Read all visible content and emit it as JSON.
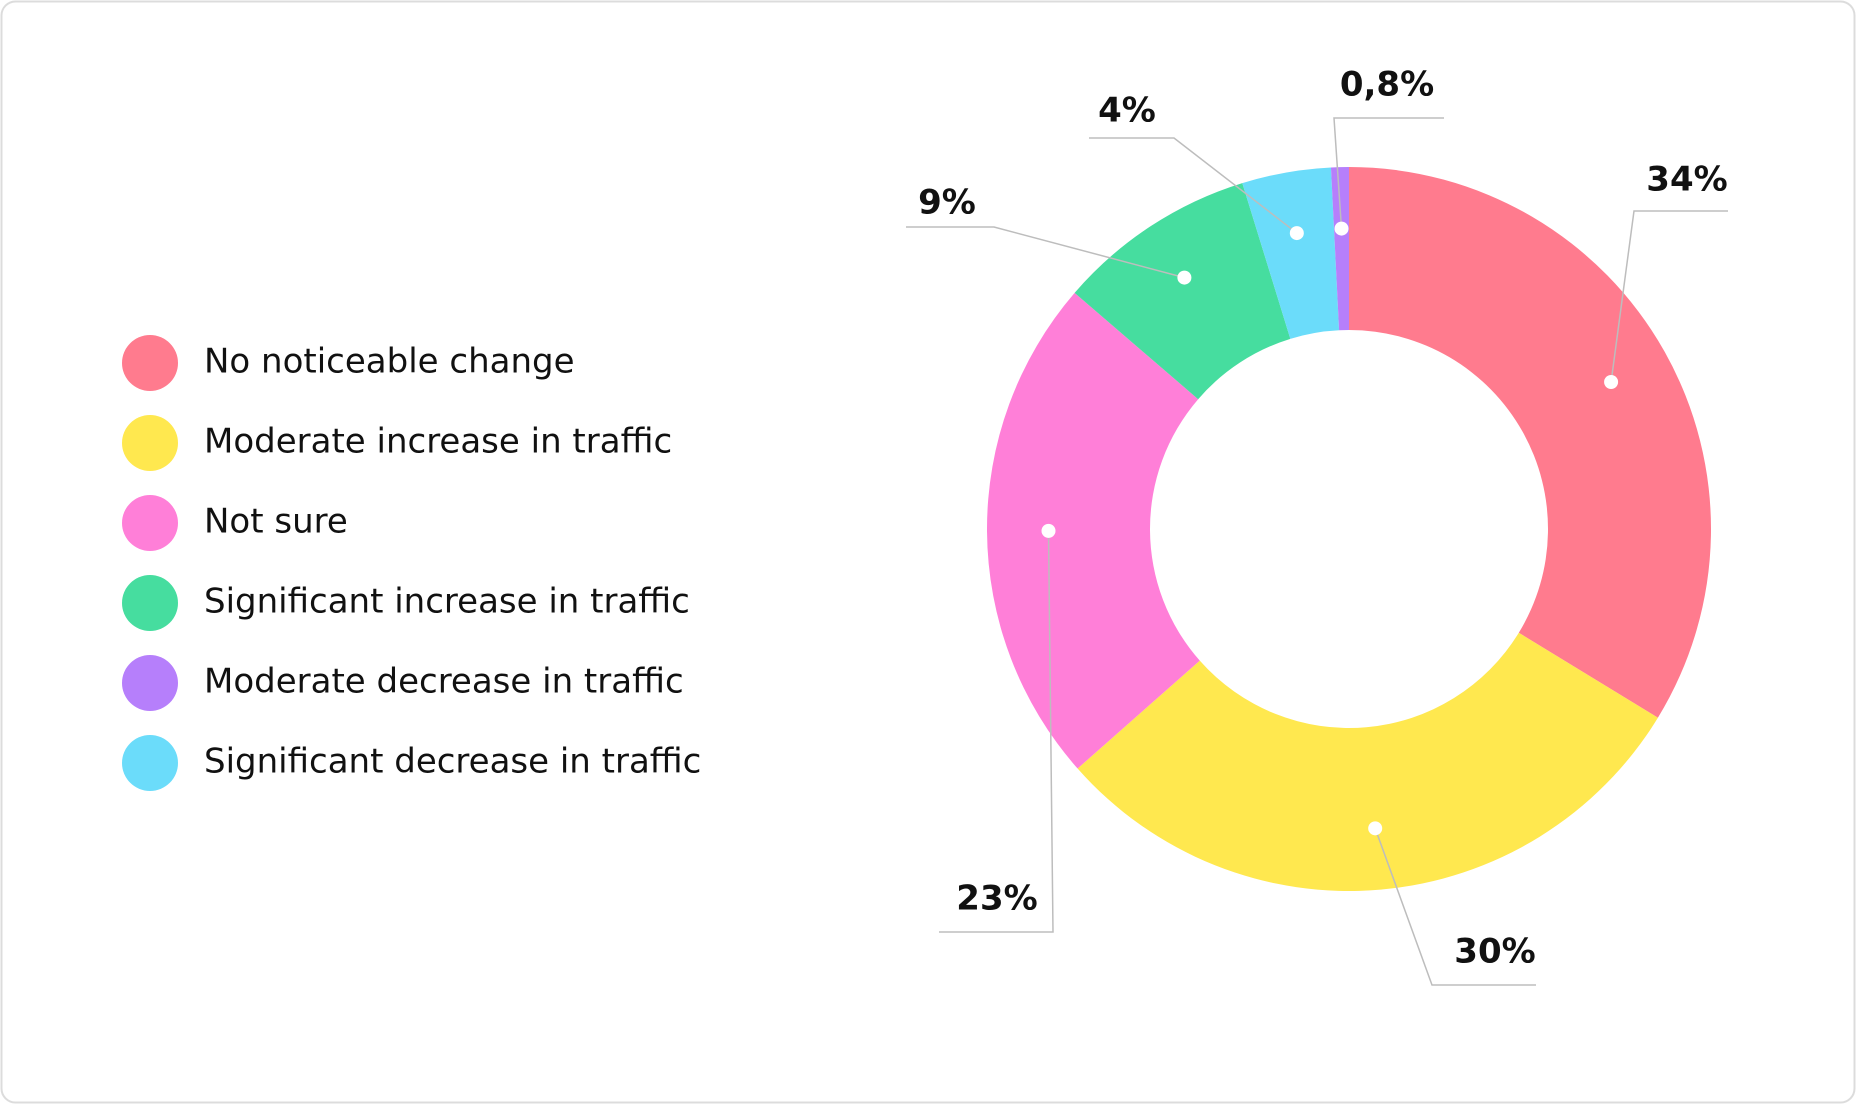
{
  "chart_data": {
    "type": "donut",
    "categories": [
      "No noticeable change",
      "Moderate increase in traffic",
      "Not sure",
      "Significant increase in traffic",
      "Moderate decrease in traffic",
      "Significant decrease in traffic"
    ],
    "values": [
      34,
      30,
      23,
      9,
      0.8,
      4
    ],
    "value_labels": [
      "34%",
      "30%",
      "23%",
      "9%",
      "0,8%",
      "4%"
    ],
    "colors": [
      "#ff7b8e",
      "#ffe84f",
      "#ff7fd8",
      "#46dd9f",
      "#b67ffb",
      "#6bdcfa"
    ],
    "slice_order": [
      0,
      1,
      2,
      3,
      5,
      4
    ]
  }
}
